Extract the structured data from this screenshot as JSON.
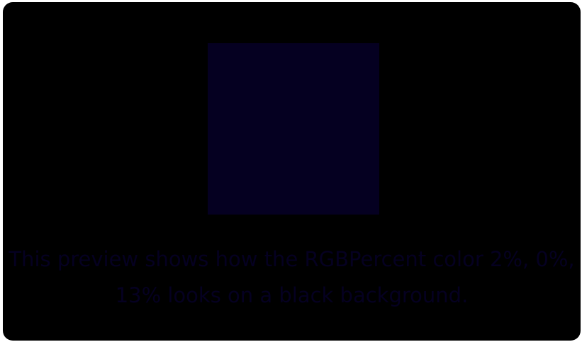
{
  "preview": {
    "background_color": "#000000",
    "swatch_color": "#050021",
    "caption_line_1": "This preview shows how the RGBPercent color 2%, 0%,",
    "caption_line_2": "13% looks on a black background."
  }
}
